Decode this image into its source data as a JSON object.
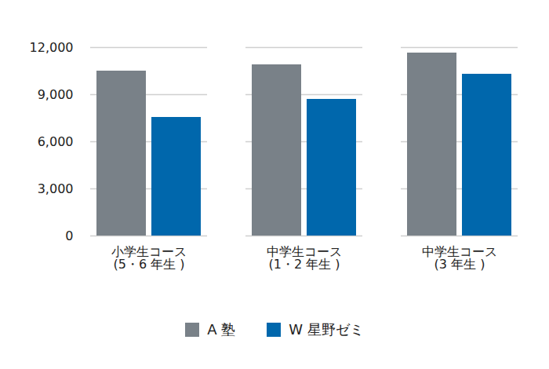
{
  "chart_data": {
    "type": "bar",
    "categories": [
      "小学生コース\n(5・6 年生 )",
      "中学生コース\n(1・2 年生 )",
      "中学生コース\n(3 年生 )"
    ],
    "series": [
      {
        "name": "A 塾",
        "color": "#798188",
        "values": [
          10500,
          10900,
          11650
        ]
      },
      {
        "name": "W 星野ゼミ",
        "color": "#0067ac",
        "values": [
          7550,
          8700,
          10300
        ]
      }
    ],
    "ylim": [
      0,
      12000
    ],
    "yticks": [
      0,
      {
        "value": 3000,
        "label": "3,000"
      },
      {
        "value": 6000,
        "label": "6,000"
      },
      {
        "value": 9000,
        "label": "9,000"
      },
      {
        "value": 12000,
        "label": "12,000"
      }
    ],
    "grid": true,
    "legend": "bottom"
  }
}
